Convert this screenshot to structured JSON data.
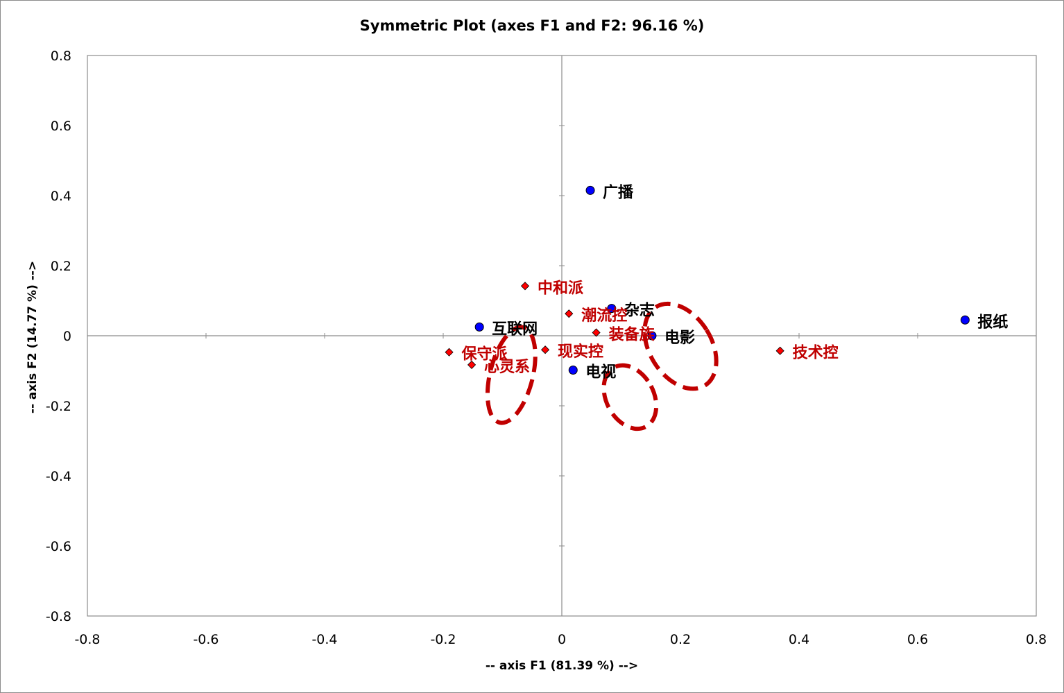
{
  "chart_data": {
    "type": "scatter",
    "title": "Symmetric Plot (axes F1 and F2: 96.16 %)",
    "xlabel": "-- axis F1 (81.39 %) -->",
    "ylabel": "-- axis F2 (14.77 %) -->",
    "xlim": [
      -0.8,
      0.8
    ],
    "ylim": [
      -0.8,
      0.8
    ],
    "x_ticks": [
      -0.8,
      -0.6,
      -0.4,
      -0.2,
      0,
      0.2,
      0.4,
      0.6,
      0.8
    ],
    "y_ticks": [
      -0.8,
      -0.6,
      -0.4,
      -0.2,
      0,
      0.2,
      0.4,
      0.6,
      0.8
    ],
    "x_tick_labels": [
      "-0.8",
      "-0.6",
      "-0.4",
      "-0.2",
      "0",
      "0.2",
      "0.4",
      "0.6",
      "0.8"
    ],
    "y_tick_labels": [
      "-0.8",
      "-0.6",
      "-0.4",
      "-0.2",
      "0",
      "0.2",
      "0.4",
      "0.6",
      "0.8"
    ],
    "grid": false,
    "series": [
      {
        "marker": "circle",
        "color": "#0000ff",
        "label_color": "#000000",
        "points": [
          {
            "label": "广播",
            "x": 0.048,
            "y": 0.415
          },
          {
            "label": "杂志",
            "x": 0.084,
            "y": 0.078
          },
          {
            "label": "电影",
            "x": 0.152,
            "y": 0.0
          },
          {
            "label": "互联网",
            "x": -0.139,
            "y": 0.025
          },
          {
            "label": "电视",
            "x": 0.019,
            "y": -0.098
          },
          {
            "label": "报纸",
            "x": 0.68,
            "y": 0.045
          }
        ]
      },
      {
        "marker": "diamond",
        "color": "#ff0000",
        "label_color": "#c00000",
        "points": [
          {
            "label": "中和派",
            "x": -0.062,
            "y": 0.142
          },
          {
            "label": "潮流控",
            "x": 0.012,
            "y": 0.063
          },
          {
            "label": "装备族",
            "x": 0.058,
            "y": 0.009
          },
          {
            "label": "现实控",
            "x": -0.028,
            "y": -0.04
          },
          {
            "label": "保守派",
            "x": -0.19,
            "y": -0.047
          },
          {
            "label": "心灵系",
            "x": -0.152,
            "y": -0.083
          },
          {
            "label": "技术控",
            "x": 0.368,
            "y": -0.043
          }
        ]
      }
    ],
    "annotations": [
      {
        "shape": "dashed-ellipse",
        "color": "#c00000",
        "cx": -0.085,
        "cy": -0.112,
        "rx": 0.036,
        "ry": 0.14,
        "angle_deg": 14
      },
      {
        "shape": "dashed-ellipse",
        "color": "#c00000",
        "cx": 0.115,
        "cy": -0.175,
        "rx": 0.04,
        "ry": 0.096,
        "angle_deg": -28
      },
      {
        "shape": "dashed-ellipse",
        "color": "#c00000",
        "cx": 0.2,
        "cy": -0.03,
        "rx": 0.052,
        "ry": 0.132,
        "angle_deg": -32
      }
    ]
  }
}
